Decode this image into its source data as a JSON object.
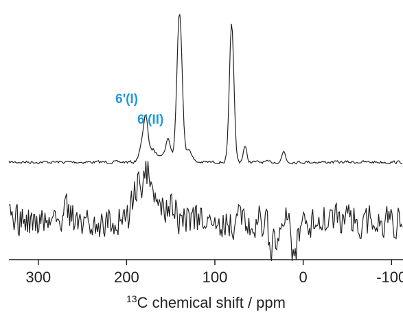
{
  "top_caption_fragment": "",
  "chart_data": {
    "type": "line",
    "title": "",
    "xlabel_superscript": "13",
    "xlabel": "C chemical shift / ppm",
    "ylabel": "",
    "x_reversed": true,
    "xlim": [
      320,
      -120
    ],
    "xticks": [
      300,
      200,
      100,
      0,
      -100
    ],
    "xtick_labels": [
      "300",
      "200",
      "100",
      "0",
      "-100"
    ],
    "grid": false,
    "legend": "none",
    "annotations": [
      {
        "text": "6'(I)",
        "x_ppm": 178,
        "color": "#1f9bd6"
      },
      {
        "text": "6'(II)",
        "x_ppm": 155,
        "color": "#1f9bd6"
      }
    ],
    "series": [
      {
        "peaks_ppm": [
          {
            "x": 183,
            "height": 0.1,
            "width": 3
          },
          {
            "x": 178,
            "height": 0.28,
            "width": 2.5
          },
          {
            "x": 170,
            "height": 0.08,
            "width": 3
          },
          {
            "x": 162,
            "height": 0.05,
            "width": 3
          },
          {
            "x": 153,
            "height": 0.15,
            "width": 3
          },
          {
            "x": 140,
            "height": 0.97,
            "width": 3
          },
          {
            "x": 129,
            "height": 0.08,
            "width": 3
          },
          {
            "x": 81,
            "height": 0.9,
            "width": 2.5
          },
          {
            "x": 66,
            "height": 0.1,
            "width": 2
          },
          {
            "x": 22,
            "height": 0.07,
            "width": 2
          }
        ]
      },
      {
        "peaks_ppm": [
          {
            "x": 188,
            "height": 0.55,
            "width": 5
          },
          {
            "x": 177,
            "height": 0.78,
            "width": 4
          },
          {
            "x": 165,
            "height": 0.35,
            "width": 5
          },
          {
            "x": 150,
            "height": 0.32,
            "width": 5
          },
          {
            "x": 268,
            "height": 0.2,
            "width": 3
          },
          {
            "x": 10,
            "height": -0.75,
            "width": 3
          },
          {
            "x": 35,
            "height": -0.4,
            "width": 4
          }
        ]
      }
    ]
  }
}
